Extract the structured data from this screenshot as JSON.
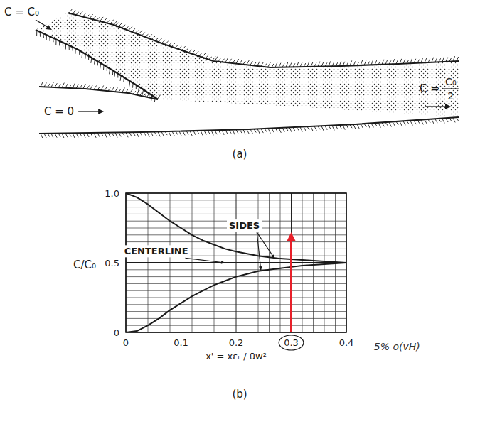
{
  "diagram": {
    "inflow_top": "C = C₀",
    "inflow_left": "C = 0",
    "outflow": {
      "lhs": "C =",
      "num": "C₀",
      "den": "2"
    },
    "caption": "(a)"
  },
  "chart_data": {
    "type": "line",
    "caption": "(b)",
    "x_label": "x' = xεₜ / ūw²",
    "y_label": "C/C₀",
    "xlim": [
      0,
      0.4
    ],
    "ylim": [
      0,
      1
    ],
    "xticks": [
      0,
      0.1,
      0.2,
      0.3,
      0.4
    ],
    "yticks": [
      0,
      0.5,
      {
        "value": 1,
        "label": "1.0"
      }
    ],
    "grid": true,
    "x": [
      0,
      0.02,
      0.04,
      0.06,
      0.08,
      0.1,
      0.12,
      0.14,
      0.16,
      0.18,
      0.2,
      0.22,
      0.24,
      0.26,
      0.28,
      0.3,
      0.32,
      0.34,
      0.36,
      0.38,
      0.4
    ],
    "series": [
      {
        "color": "#1a1a1a",
        "line_style": "solid",
        "values": [
          1.0,
          0.97,
          0.92,
          0.86,
          0.8,
          0.75,
          0.7,
          0.66,
          0.63,
          0.6,
          0.58,
          0.565,
          0.55,
          0.54,
          0.53,
          0.525,
          0.52,
          0.515,
          0.51,
          0.505,
          0.5
        ]
      },
      {
        "color": "#1a1a1a",
        "line_style": "solid",
        "values": [
          0,
          0.01,
          0.05,
          0.1,
          0.16,
          0.21,
          0.26,
          0.3,
          0.34,
          0.37,
          0.4,
          0.42,
          0.44,
          0.45,
          0.46,
          0.47,
          0.48,
          0.485,
          0.49,
          0.495,
          0.5
        ]
      },
      {
        "color": "#1a1a1a",
        "line_style": "solid",
        "values": [
          0.5,
          0.5,
          0.5,
          0.5,
          0.5,
          0.5,
          0.5,
          0.5,
          0.5,
          0.5,
          0.5,
          0.5,
          0.5,
          0.5,
          0.5,
          0.5,
          0.5,
          0.5,
          0.5,
          0.5,
          0.5
        ]
      }
    ],
    "annotations": [
      {
        "text": "SIDES",
        "x": 0.215,
        "y": 0.77,
        "targets": [
          [
            0.27,
            0.53
          ],
          [
            0.245,
            0.445
          ]
        ]
      },
      {
        "text": "CENTERLINE",
        "x": 0.055,
        "y": 0.585,
        "targets": [
          [
            0.18,
            0.5
          ]
        ]
      },
      {
        "text": "5% o(vH)",
        "x": 0.45,
        "y": -0.1
      }
    ],
    "arrow": {
      "x": 0.3,
      "y": [
        0,
        0.72
      ],
      "color": "#e8202a"
    }
  }
}
